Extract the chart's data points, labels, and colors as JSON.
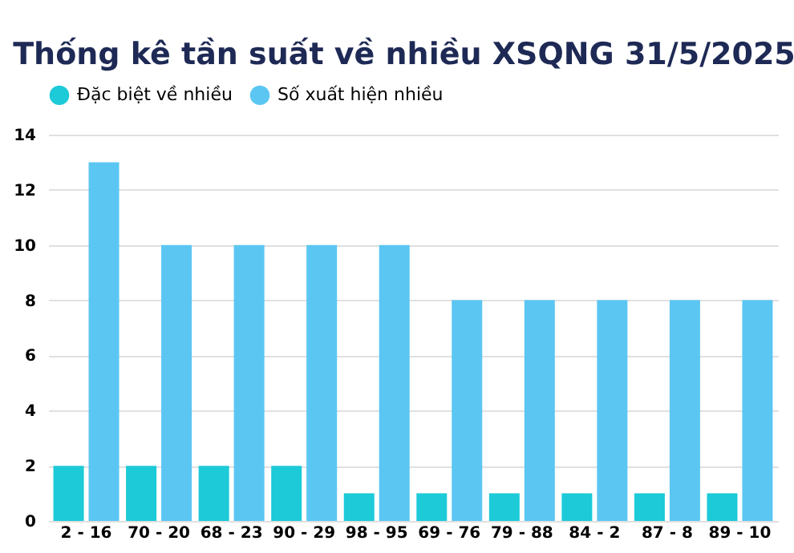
{
  "chart_data": {
    "type": "bar",
    "title": "Thống kê tần suất về nhiều XSQNG 31/5/2025",
    "categories": [
      "2 - 16",
      "70 - 20",
      "68 - 23",
      "90 - 29",
      "98 - 95",
      "69 - 76",
      "79 - 88",
      "84 - 2",
      "87 - 8",
      "89 - 10"
    ],
    "series": [
      {
        "name": "Đặc biệt về nhiều",
        "color": "#1ccad8",
        "values": [
          2,
          2,
          2,
          2,
          1,
          1,
          1,
          1,
          1,
          1
        ]
      },
      {
        "name": "Số xuất hiện nhiều",
        "color": "#5bc6f2",
        "values": [
          13,
          10,
          10,
          10,
          10,
          8,
          8,
          8,
          8,
          8
        ]
      }
    ],
    "ylim": [
      0,
      14
    ],
    "yticks": [
      0,
      2,
      4,
      6,
      8,
      10,
      12,
      14
    ],
    "grid": "y",
    "legend": "top"
  }
}
